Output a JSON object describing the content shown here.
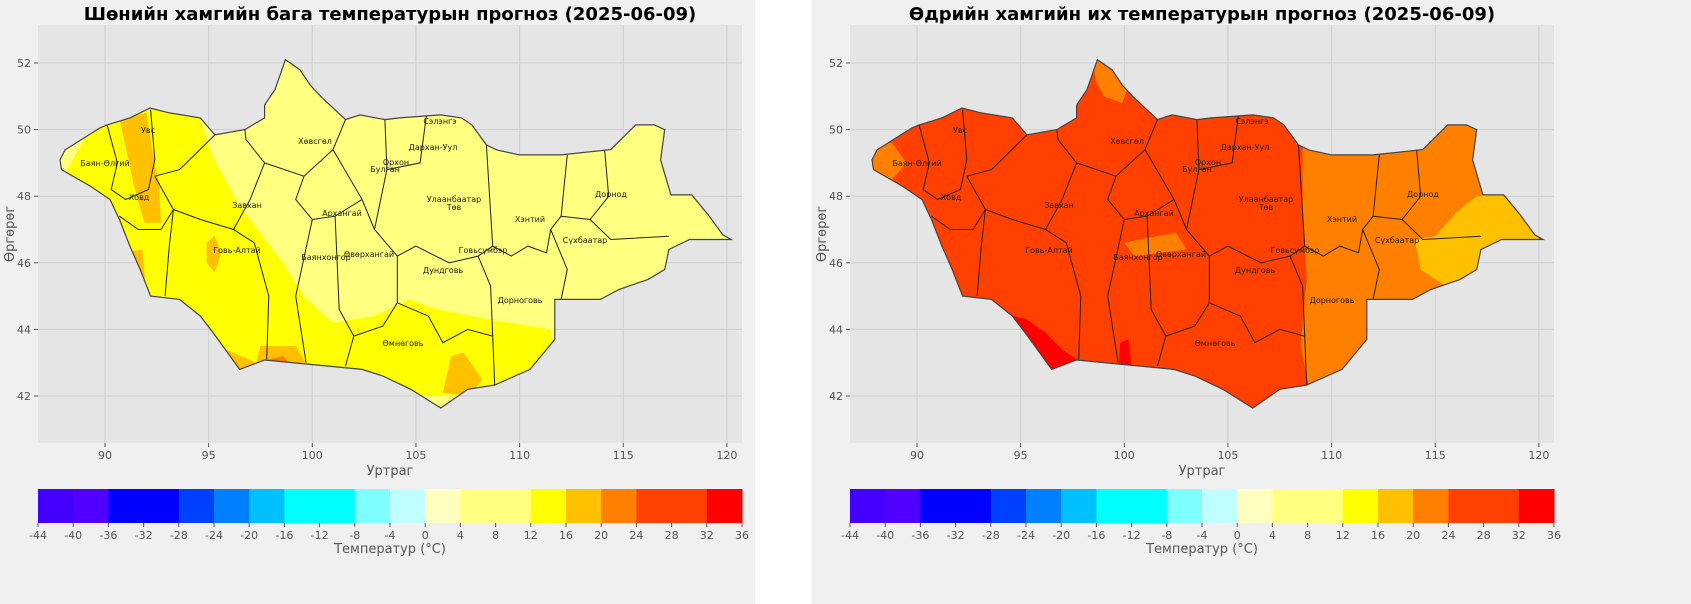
{
  "panels": [
    {
      "title": "Шөнийн хамгийн бага температурын прогноз (2025-06-09)",
      "xlabel": "Уртраг",
      "ylabel": "Өргөрөг",
      "colorbar_label": "Температур (°C)"
    },
    {
      "title": "Өдрийн хамгийн их температурын прогноз (2025-06-09)",
      "xlabel": "Уртраг",
      "ylabel": "Өргөрөг",
      "colorbar_label": "Температур (°C)"
    }
  ],
  "x_ticks": [
    "90",
    "95",
    "100",
    "105",
    "110",
    "115",
    "120"
  ],
  "y_ticks": [
    "42",
    "44",
    "46",
    "48",
    "50",
    "52"
  ],
  "regions": [
    "Увс",
    "Баян-Өлгий",
    "Ховд",
    "Завхан",
    "Говь-Алтай",
    "Хөвсгөл",
    "Архангай",
    "Баянхонгор",
    "Өвөрхангай",
    "Булган",
    "Орхон",
    "Сэлэнгэ",
    "Дархан-Уул",
    "Улаанбаатар",
    "Төв",
    "Говьсүмбэр",
    "Дундговь",
    "Өмнөговь",
    "Дорноговь",
    "Хэнтий",
    "Сүхбаатар",
    "Дорнод"
  ],
  "chart_data": {
    "type": "heatmap",
    "colorbar": {
      "levels": [
        -44,
        -40,
        -36,
        -28,
        -24,
        -20,
        -16,
        -8,
        -4,
        0,
        4,
        12,
        16,
        20,
        24,
        32,
        36
      ],
      "tick_labels": [
        "-44",
        "-40",
        "-36",
        "-32",
        "-28",
        "-24",
        "-20",
        "-16",
        "-12",
        "-8",
        "-4",
        "0",
        "4",
        "8",
        "12",
        "16",
        "20",
        "24",
        "28",
        "32",
        "36"
      ],
      "colors": [
        "#4400ff",
        "#5000ff",
        "#0000ff",
        "#0040ff",
        "#0080ff",
        "#00c0ff",
        "#00ffff",
        "#80ffff",
        "#c0ffff",
        "#ffffc0",
        "#ffff80",
        "#ffff00",
        "#ffc000",
        "#ff8000",
        "#ff4000",
        "#ff0000"
      ]
    },
    "xlim": [
      86.8,
      120.7
    ],
    "ylim": [
      40.6,
      53.1
    ],
    "dominant_range_min_temp": "4–12 °C (east/center), 12–20 °C (west/south)",
    "dominant_range_max_temp": "24–32 °C (most), 20–24 °C (east), 32–36 °C (south-west)"
  }
}
